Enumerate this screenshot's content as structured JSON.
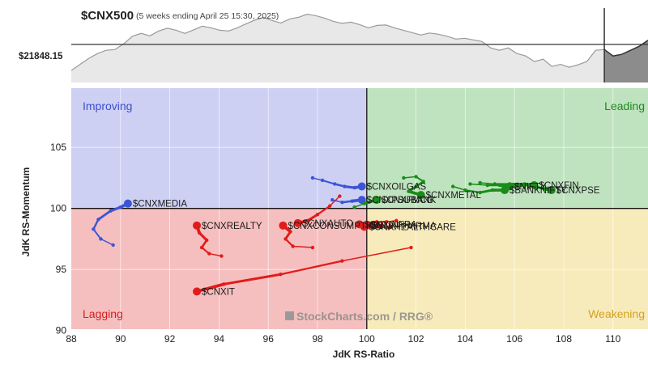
{
  "header": {
    "symbol": "$CNX500",
    "subtitle": "(5 weeks ending April 25 15:30, 2025)",
    "price_label": "$21848.15"
  },
  "watermark": "StockCharts.com / RRG®",
  "colors": {
    "improving_bg": "#cdd0f3",
    "leading_bg": "#bfe3bf",
    "lagging_bg": "#f6bfbf",
    "weakening_bg": "#f8ebbb",
    "improving_text": "#3d4fd1",
    "leading_text": "#1d8a1d",
    "lagging_text": "#d42020",
    "weakening_text": "#d4a21e",
    "blue": "#3b55d6",
    "green": "#1a8c1a",
    "red": "#e21b1b"
  },
  "chart_data": {
    "type": "scatter",
    "title": "$CNX500",
    "xlabel": "JdK RS-Ratio",
    "ylabel": "JdK RS-Momentum",
    "xlim": [
      88,
      111.5
    ],
    "ylim": [
      90,
      110
    ],
    "x_ticks": [
      88,
      90,
      92,
      94,
      96,
      98,
      100,
      102,
      104,
      106,
      108,
      110
    ],
    "x_tick_labels": [
      "88",
      "90",
      "92",
      "94",
      "96",
      "98",
      "100",
      "102",
      "104",
      "106",
      "108",
      "110"
    ],
    "y_ticks": [
      90,
      95,
      100,
      105
    ],
    "y_tick_labels": [
      "90",
      "95",
      "100",
      "105"
    ],
    "quadrants": {
      "improving": "Improving",
      "leading": "Leading",
      "lagging": "Lagging",
      "weakening": "Weakening"
    },
    "series": [
      {
        "name": "$CNXMEDIA",
        "color": "blue",
        "x": [
          89.7,
          89.2,
          88.9,
          89.1,
          89.6,
          90.0,
          90.3
        ],
        "y": [
          97.0,
          97.5,
          98.3,
          99.1,
          99.8,
          100.1,
          100.4
        ]
      },
      {
        "name": "$CNXOILGAS",
        "color": "blue",
        "x": [
          97.8,
          98.2,
          98.7,
          99.1,
          99.5,
          99.8
        ],
        "y": [
          102.5,
          102.3,
          102.0,
          101.8,
          101.7,
          101.8
        ]
      },
      {
        "name": "$CNXPSUBANK",
        "color": "blue",
        "x": [
          98.6,
          99.0,
          99.4,
          99.8
        ],
        "y": [
          100.7,
          100.5,
          100.6,
          100.7
        ]
      },
      {
        "name": "$CNXFMCG",
        "color": "green",
        "x": [
          99.5,
          99.9,
          100.4
        ],
        "y": [
          100.1,
          100.4,
          100.7
        ]
      },
      {
        "name": "$CNXMETAL",
        "color": "green",
        "x": [
          101.5,
          102.0,
          102.3,
          102.0,
          101.7,
          102.2
        ],
        "y": [
          102.5,
          102.6,
          102.2,
          101.8,
          101.4,
          101.1
        ]
      },
      {
        "name": "$BANKNIFTY",
        "color": "green",
        "x": [
          103.5,
          104.0,
          104.6,
          105.1,
          105.6
        ],
        "y": [
          101.8,
          101.5,
          101.3,
          101.5,
          101.5
        ]
      },
      {
        "name": "$NIFTY",
        "color": "green",
        "x": [
          104.2,
          104.9,
          105.5,
          105.8
        ],
        "y": [
          102.0,
          101.9,
          101.9,
          101.8
        ]
      },
      {
        "name": "$CNXFIN",
        "color": "green",
        "x": [
          104.6,
          105.2,
          105.8,
          106.4,
          106.8
        ],
        "y": [
          102.1,
          102.0,
          102.0,
          102.0,
          101.9
        ]
      },
      {
        "name": "$CNXPSE",
        "color": "green",
        "x": [
          105.4,
          106.0,
          106.6,
          107.2,
          107.5
        ],
        "y": [
          101.9,
          101.8,
          101.9,
          101.6,
          101.5
        ]
      },
      {
        "name": "$CNXREALTY",
        "color": "red",
        "x": [
          94.1,
          93.6,
          93.3,
          93.5,
          93.2,
          93.1
        ],
        "y": [
          96.1,
          96.3,
          96.8,
          97.4,
          98.0,
          98.6
        ]
      },
      {
        "name": "$CNXCONSUMPTION",
        "color": "red",
        "x": [
          97.8,
          97.0,
          96.7,
          96.9,
          96.6
        ],
        "y": [
          96.8,
          96.9,
          97.5,
          98.1,
          98.6
        ]
      },
      {
        "name": "$CNXAUTO",
        "color": "red",
        "x": [
          98.9,
          98.5,
          98.0,
          97.6,
          97.2
        ],
        "y": [
          101.0,
          100.2,
          99.5,
          99.0,
          98.8
        ]
      },
      {
        "name": "$CNXINFRA",
        "color": "red",
        "x": [
          101.2,
          100.8,
          100.4,
          100.1,
          99.7
        ],
        "y": [
          99.0,
          98.9,
          98.9,
          98.8,
          98.7
        ]
      },
      {
        "name": "$CNXPHARMA",
        "color": "red",
        "x": [
          101.0,
          100.6,
          100.3,
          100.0
        ],
        "y": [
          98.5,
          98.6,
          98.6,
          98.6
        ]
      },
      {
        "name": "$CNXHEALTHCARE",
        "color": "red",
        "x": [
          100.9,
          100.5,
          100.2,
          99.9
        ],
        "y": [
          98.4,
          98.5,
          98.5,
          98.5
        ]
      },
      {
        "name": "$CNXIT",
        "color": "red",
        "x": [
          101.8,
          99.0,
          96.5,
          94.2,
          93.1
        ],
        "y": [
          96.8,
          95.7,
          94.6,
          93.8,
          93.2
        ]
      }
    ],
    "labels": [
      {
        "series": "$CNXMEDIA",
        "text": "$CNXMEDIA"
      },
      {
        "series": "$CNXOILGAS",
        "text": "$CNXOILGAS"
      },
      {
        "series": "$CNXPSUBANK",
        "text": "$CNXPSUBANK"
      },
      {
        "series": "$CNXFMCG",
        "text": "$CNXFMCG"
      },
      {
        "series": "$CNXMETAL",
        "text": "$CNXMETAL"
      },
      {
        "series": "$BANKNIFTY",
        "text": "$BANKNIFTY"
      },
      {
        "series": "$NIFTY",
        "text": "$NIFTY"
      },
      {
        "series": "$CNXFIN",
        "text": "$CNXFIN"
      },
      {
        "series": "$CNXPSE",
        "text": "$CNXPSE"
      },
      {
        "series": "$CNXREALTY",
        "text": "$CNXREALTY"
      },
      {
        "series": "$CNXCONSUMPTION",
        "text": "$CNXCONSUMPTION"
      },
      {
        "series": "$CNXAUTO",
        "text": "$CNXAUTO"
      },
      {
        "series": "$CNXINFRA",
        "text": "$CNXINFRA"
      },
      {
        "series": "$CNXPHARMA",
        "text": "$CNXPHARMA"
      },
      {
        "series": "$CNXHEALTHCARE",
        "text": "$CNXHEALTHCARE"
      },
      {
        "series": "$CNXIT",
        "text": "$CNXIT"
      }
    ],
    "benchmark_series": {
      "name": "$CNX500",
      "reference_price": 21848.15,
      "values": [
        21200,
        21350,
        21500,
        21620,
        21700,
        21720,
        21860,
        22050,
        22120,
        22060,
        22180,
        22250,
        22200,
        22120,
        22210,
        22300,
        22260,
        22200,
        22180,
        22260,
        22360,
        22450,
        22520,
        22440,
        22380,
        22480,
        22520,
        22600,
        22560,
        22500,
        22420,
        22370,
        22400,
        22340,
        22260,
        22320,
        22330,
        22260,
        22200,
        22140,
        22080,
        22130,
        22100,
        22050,
        21980,
        22000,
        21960,
        21920,
        21760,
        21700,
        21760,
        21620,
        21560,
        21420,
        21480,
        21300,
        21350,
        21280,
        21340,
        21420,
        21700,
        21720,
        21560,
        21600,
        21700,
        21800,
        21950
      ]
    }
  }
}
